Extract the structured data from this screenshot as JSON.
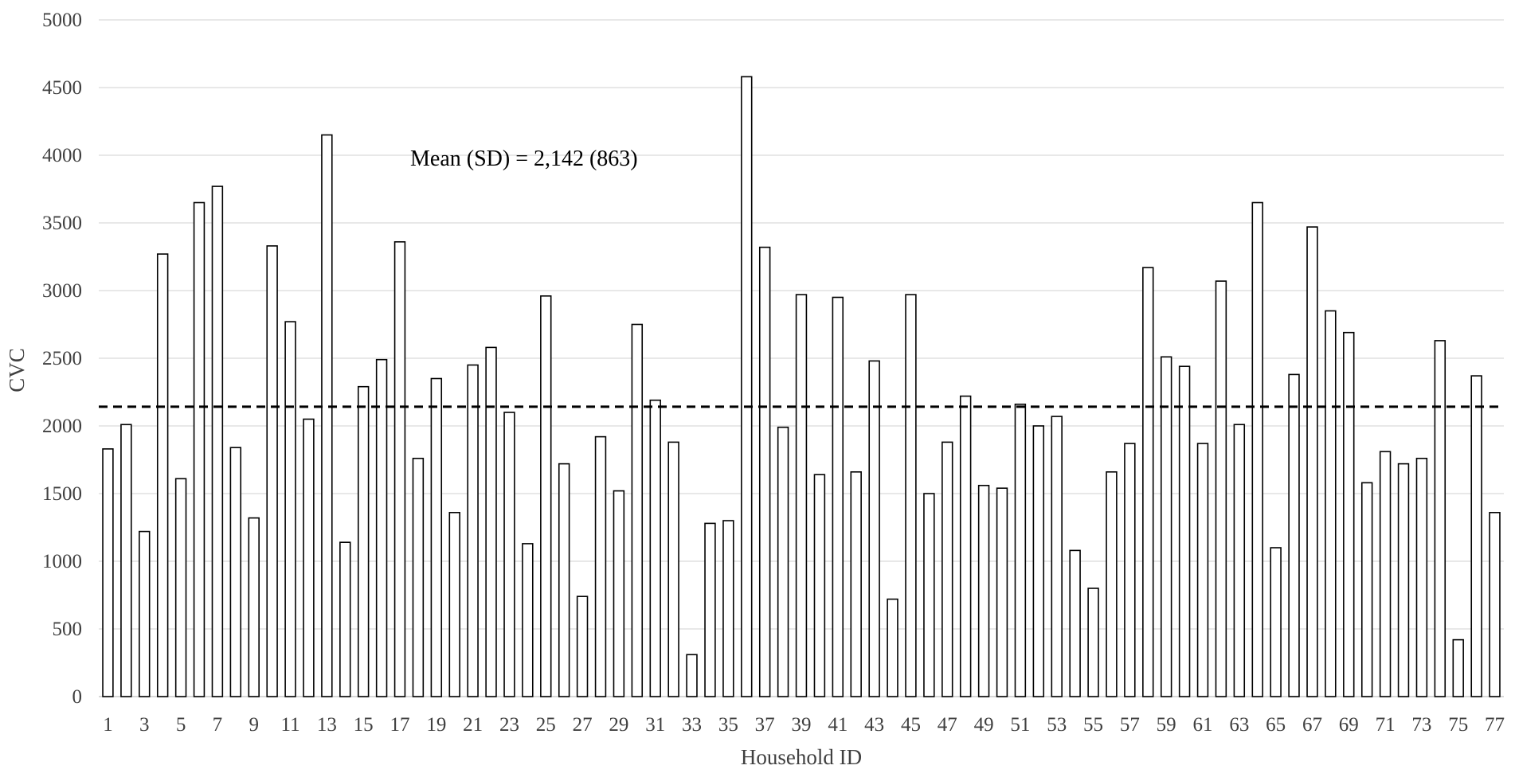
{
  "chart_data": {
    "type": "bar",
    "title": "",
    "xlabel": "Household ID",
    "ylabel": "CVC",
    "ylim": [
      0,
      5000
    ],
    "yticks": [
      0,
      500,
      1000,
      1500,
      2000,
      2500,
      3000,
      3500,
      4000,
      4500,
      5000
    ],
    "grid": "horizontal",
    "legend": "none",
    "annotation": "Mean (SD) = 2,142 (863)",
    "mean_line": 2142,
    "categories": [
      "1",
      "2",
      "3",
      "4",
      "5",
      "6",
      "7",
      "8",
      "9",
      "10",
      "11",
      "12",
      "13",
      "14",
      "15",
      "16",
      "17",
      "18",
      "19",
      "20",
      "21",
      "22",
      "23",
      "24",
      "25",
      "26",
      "27",
      "28",
      "29",
      "30",
      "31",
      "32",
      "33",
      "34",
      "35",
      "36",
      "37",
      "38",
      "39",
      "40",
      "41",
      "42",
      "43",
      "44",
      "45",
      "46",
      "47",
      "48",
      "49",
      "50",
      "51",
      "52",
      "53",
      "54",
      "55",
      "56",
      "57",
      "58",
      "59",
      "60",
      "61",
      "62",
      "63",
      "64",
      "65",
      "66",
      "67",
      "68",
      "69",
      "70",
      "71",
      "72",
      "73",
      "74",
      "75",
      "76",
      "77"
    ],
    "x_tick_labels": [
      "1",
      "",
      "3",
      "",
      "5",
      "",
      "7",
      "",
      "9",
      "",
      "11",
      "",
      "13",
      "",
      "15",
      "",
      "17",
      "",
      "19",
      "",
      "21",
      "",
      "23",
      "",
      "25",
      "",
      "27",
      "",
      "29",
      "",
      "31",
      "",
      "33",
      "",
      "35",
      "",
      "37",
      "",
      "39",
      "",
      "41",
      "",
      "43",
      "",
      "45",
      "",
      "47",
      "",
      "49",
      "",
      "51",
      "",
      "53",
      "",
      "55",
      "",
      "57",
      "",
      "59",
      "",
      "61",
      "",
      "63",
      "",
      "65",
      "",
      "67",
      "",
      "69",
      "",
      "71",
      "",
      "73",
      "",
      "75",
      "",
      "77"
    ],
    "values": [
      1830,
      2010,
      1220,
      3270,
      1610,
      3650,
      3770,
      1840,
      1320,
      3330,
      2770,
      2050,
      4150,
      1140,
      2290,
      2490,
      3360,
      1760,
      2350,
      1360,
      2450,
      2580,
      2100,
      1130,
      2960,
      1720,
      740,
      1920,
      1520,
      2750,
      2190,
      1880,
      310,
      1280,
      1300,
      4580,
      3320,
      1990,
      2970,
      1640,
      2950,
      1660,
      2480,
      720,
      2970,
      1500,
      1880,
      2220,
      1560,
      1540,
      2160,
      2000,
      2070,
      1080,
      800,
      1660,
      1870,
      3170,
      2510,
      2440,
      1870,
      3070,
      2010,
      3650,
      1100,
      2380,
      3470,
      2850,
      2690,
      1580,
      1810,
      1720,
      1760,
      2630,
      420,
      2370,
      1360
    ],
    "colors": {
      "bar_fill": "#ffffff",
      "bar_stroke": "#000000",
      "grid": "#d9d9d9",
      "mean_line": "#000000",
      "text": "#404040"
    }
  }
}
